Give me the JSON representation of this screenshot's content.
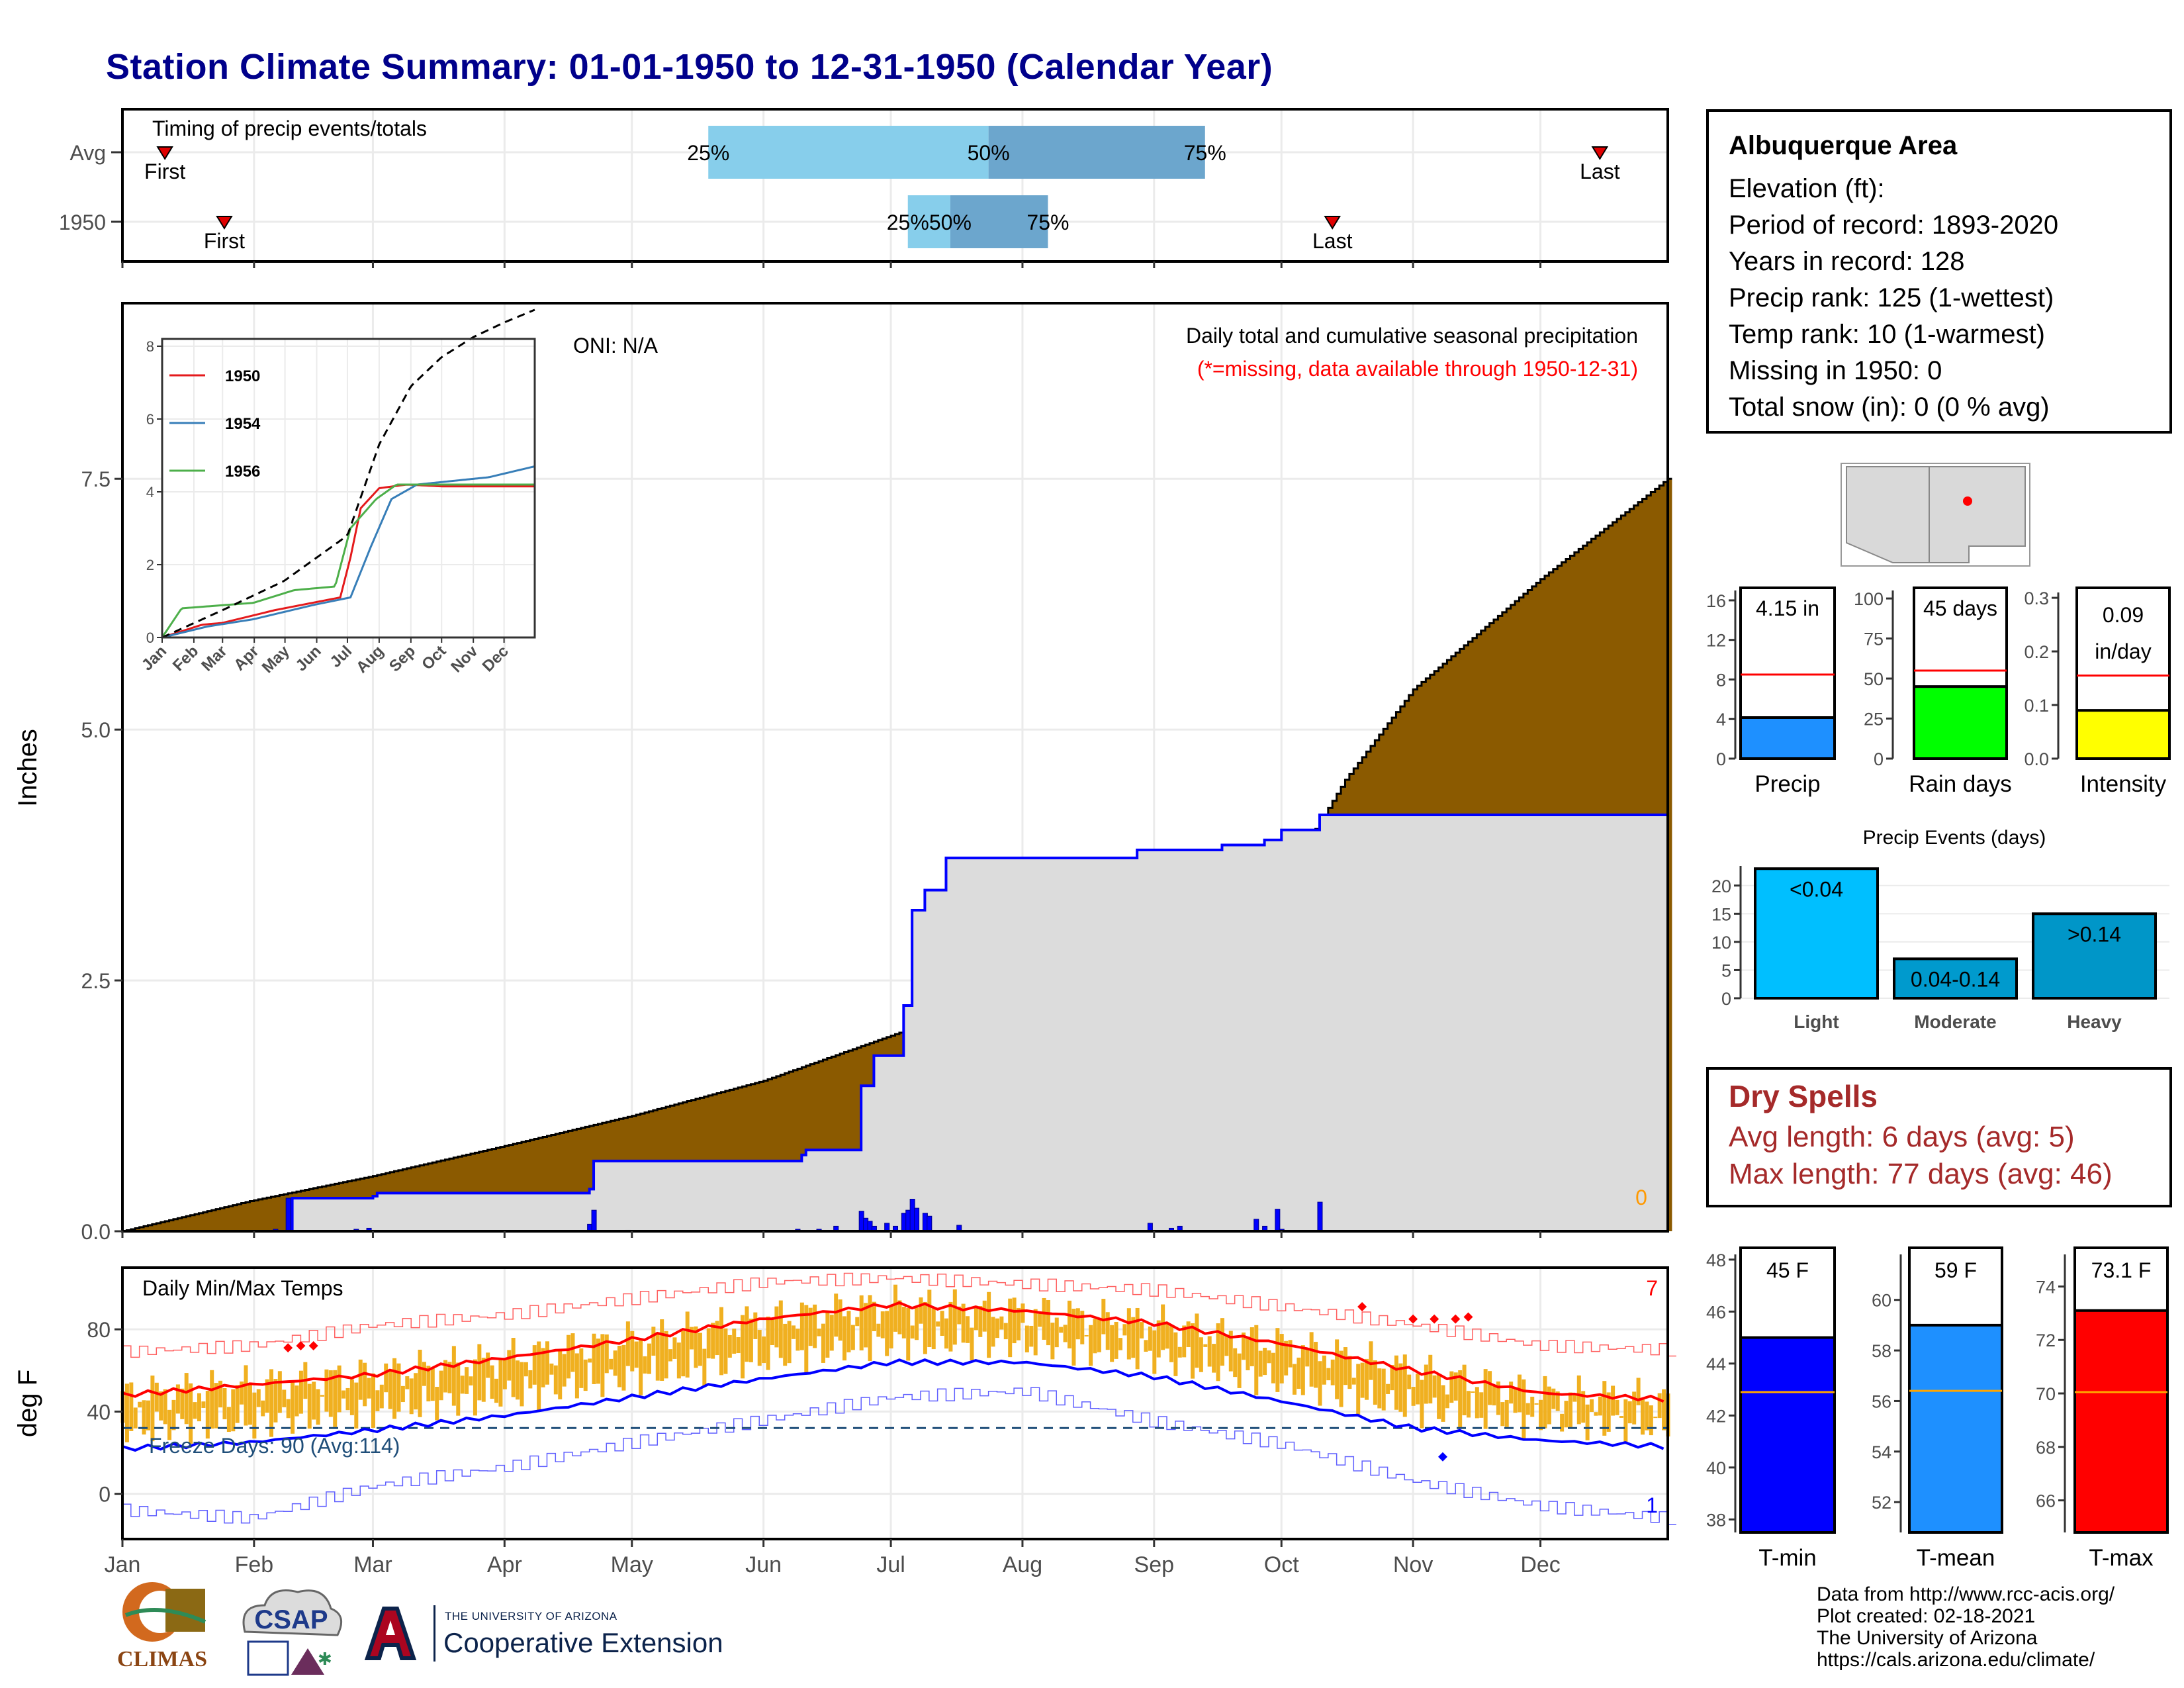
{
  "title": "Station Climate Summary: 01-01-1950 to 12-31-1950 (Calendar Year)",
  "months": [
    "Jan",
    "Feb",
    "Mar",
    "Apr",
    "May",
    "Jun",
    "Jul",
    "Aug",
    "Sep",
    "Oct",
    "Nov",
    "Dec"
  ],
  "station": {
    "name": "Albuquerque Area",
    "lines": [
      "Elevation (ft):",
      "Period of record: 1893-2020",
      "Years in record: 128",
      "Precip rank: 125 (1-wettest)",
      "Temp rank: 10 (1-warmest)",
      "Missing in 1950: 0",
      "Total snow (in): 0 (0 % avg)"
    ]
  },
  "dry_spells": {
    "title": "Dry Spells",
    "avg": "Avg length: 6 days (avg: 5)",
    "max": "Max length: 77 days (avg: 46)"
  },
  "footer": [
    "Data from http://www.rcc-acis.org/",
    "Plot created: 02-18-2021",
    "The University of Arizona",
    "https://cals.arizona.edu/climate/"
  ],
  "logos": {
    "climas": "CLIMAS",
    "csap": "CSAP",
    "ua_small": "THE UNIVERSITY OF ARIZONA",
    "ua_coop": "Cooperative Extension"
  },
  "colors": {
    "avg_cum_fill": "#8b5a00",
    "obs_cum_fill": "#dcdcdc",
    "obs_line": "#0000ff",
    "bar_light": "#87ceeb",
    "bar_dark": "#6ca6cd",
    "temp_band": "#f0b020",
    "tmax_avg": "#ff0000",
    "tmin_avg": "#0000ff"
  },
  "chart_data": [
    {
      "type": "bar",
      "id": "timing",
      "title": "Timing of precip events/totals",
      "categories": [
        "Avg",
        "1950"
      ],
      "x_unit": "day of year",
      "rows": [
        {
          "label": "Avg",
          "first": 11,
          "last": 349,
          "p25": 139,
          "p50": 205,
          "p75": 256,
          "labels": {
            "first": "First",
            "last": "Last",
            "p25": "25%",
            "p50": "50%",
            "p75": "75%"
          }
        },
        {
          "label": "1950",
          "first": 25,
          "last": 286,
          "p25": 186,
          "p50": 196,
          "p75": 219,
          "labels": {
            "first": "First",
            "last": "Last",
            "p25": "25%",
            "p50": "50%",
            "p75": "75%"
          }
        }
      ]
    },
    {
      "type": "area",
      "id": "cumulative-precip",
      "title": "Daily total and cumulative seasonal precipitation",
      "subtitle": "(*=missing, data available through 1950-12-31)",
      "annotation": "ONI: N/A",
      "ylabel": "Inches",
      "ylim": [
        0,
        9.25
      ],
      "yticks": [
        0.0,
        2.5,
        5.0,
        7.5
      ],
      "ytick_labels": [
        "0.0",
        "2.5",
        "5.0",
        "7.5"
      ],
      "missing_count_label": "0",
      "x_unit": "day of year",
      "avg_cumulative": [
        [
          1,
          0
        ],
        [
          31,
          0.3
        ],
        [
          60,
          0.55
        ],
        [
          91,
          0.85
        ],
        [
          121,
          1.15
        ],
        [
          152,
          1.5
        ],
        [
          182,
          1.95
        ],
        [
          213,
          2.4
        ],
        [
          244,
          2.75
        ],
        [
          274,
          3.45
        ],
        [
          289,
          4.5
        ],
        [
          305,
          5.4
        ],
        [
          335,
          6.5
        ],
        [
          365,
          7.5
        ]
      ],
      "obs_cumulative_steps": [
        [
          1,
          0
        ],
        [
          40,
          0
        ],
        [
          41,
          0.33
        ],
        [
          60,
          0.35
        ],
        [
          61,
          0.38
        ],
        [
          111,
          0.42
        ],
        [
          112,
          0.7
        ],
        [
          161,
          0.76
        ],
        [
          162,
          0.81
        ],
        [
          175,
          1.45
        ],
        [
          178,
          1.75
        ],
        [
          185,
          2.25
        ],
        [
          187,
          3.2
        ],
        [
          190,
          3.4
        ],
        [
          195,
          3.72
        ],
        [
          240,
          3.8
        ],
        [
          260,
          3.85
        ],
        [
          270,
          3.9
        ],
        [
          274,
          4.0
        ],
        [
          283,
          4.15
        ],
        [
          365,
          4.15
        ]
      ],
      "daily_bars": [
        [
          37,
          0.02
        ],
        [
          40,
          0.33
        ],
        [
          56,
          0.02
        ],
        [
          59,
          0.03
        ],
        [
          111,
          0.07
        ],
        [
          112,
          0.21
        ],
        [
          120,
          0.01
        ],
        [
          160,
          0.02
        ],
        [
          165,
          0.02
        ],
        [
          169,
          0.05
        ],
        [
          175,
          0.2
        ],
        [
          176,
          0.13
        ],
        [
          177,
          0.1
        ],
        [
          178,
          0.05
        ],
        [
          181,
          0.08
        ],
        [
          183,
          0.05
        ],
        [
          185,
          0.18
        ],
        [
          186,
          0.21
        ],
        [
          187,
          0.32
        ],
        [
          188,
          0.23
        ],
        [
          190,
          0.18
        ],
        [
          191,
          0.15
        ],
        [
          198,
          0.06
        ],
        [
          243,
          0.08
        ],
        [
          248,
          0.03
        ],
        [
          250,
          0.05
        ],
        [
          268,
          0.12
        ],
        [
          270,
          0.05
        ],
        [
          273,
          0.22
        ],
        [
          274,
          0.02
        ],
        [
          283,
          0.29
        ]
      ]
    },
    {
      "type": "line",
      "id": "inset-cumulative",
      "series": [
        {
          "name": "1950",
          "color": "#e41a1c",
          "points": [
            [
              1,
              0
            ],
            [
              40,
              0.35
            ],
            [
              60,
              0.4
            ],
            [
              111,
              0.75
            ],
            [
              175,
              1.1
            ],
            [
              185,
              2.2
            ],
            [
              195,
              3.55
            ],
            [
              213,
              4.1
            ],
            [
              240,
              4.2
            ],
            [
              274,
              4.15
            ],
            [
              365,
              4.15
            ]
          ]
        },
        {
          "name": "1954",
          "color": "#377eb8",
          "points": [
            [
              1,
              0
            ],
            [
              45,
              0.3
            ],
            [
              90,
              0.5
            ],
            [
              150,
              0.9
            ],
            [
              185,
              1.1
            ],
            [
              205,
              2.5
            ],
            [
              225,
              3.8
            ],
            [
              250,
              4.2
            ],
            [
              320,
              4.4
            ],
            [
              350,
              4.6
            ],
            [
              365,
              4.7
            ]
          ]
        },
        {
          "name": "1956",
          "color": "#4daf4a",
          "points": [
            [
              1,
              0
            ],
            [
              20,
              0.8
            ],
            [
              90,
              0.95
            ],
            [
              130,
              1.3
            ],
            [
              170,
              1.4
            ],
            [
              185,
              3.0
            ],
            [
              210,
              3.8
            ],
            [
              230,
              4.2
            ],
            [
              270,
              4.2
            ],
            [
              365,
              4.2
            ]
          ]
        }
      ],
      "average": {
        "style": "dashed",
        "color": "#000000",
        "points": [
          [
            1,
            0
          ],
          [
            60,
            0.75
          ],
          [
            120,
            1.55
          ],
          [
            182,
            2.8
          ],
          [
            213,
            5.3
          ],
          [
            244,
            6.9
          ],
          [
            274,
            7.7
          ],
          [
            305,
            8.25
          ],
          [
            335,
            8.65
          ],
          [
            365,
            9.0
          ]
        ]
      },
      "ylim": [
        0,
        8.2
      ],
      "yticks": [
        0,
        2,
        4,
        6,
        8
      ],
      "ytick_labels": [
        "0",
        "2",
        "4",
        "6",
        "8"
      ],
      "xtick_labels": [
        "Jan",
        "Feb",
        "Mar",
        "Apr",
        "May",
        "Jun",
        "Jul",
        "Aug",
        "Sep",
        "Oct",
        "Nov",
        "Dec"
      ]
    },
    {
      "type": "line",
      "id": "daily-temps",
      "title": "Daily Min/Max Temps",
      "ylabel": "deg F",
      "ylim": [
        -22,
        110
      ],
      "yticks": [
        0,
        40,
        80
      ],
      "ytick_labels": [
        "0",
        "40",
        "80"
      ],
      "freeze_label": "Freeze Days: 90 (Avg:114)",
      "freeze_line": 32,
      "record_high_count": "7",
      "record_low_count": "1",
      "avg_tmax": [
        [
          1,
          48
        ],
        [
          31,
          53
        ],
        [
          60,
          58
        ],
        [
          91,
          66
        ],
        [
          121,
          75
        ],
        [
          152,
          85
        ],
        [
          182,
          92
        ],
        [
          213,
          89
        ],
        [
          244,
          83
        ],
        [
          274,
          73
        ],
        [
          305,
          60
        ],
        [
          335,
          49
        ],
        [
          365,
          46
        ]
      ],
      "avg_tmin": [
        [
          1,
          22
        ],
        [
          31,
          25
        ],
        [
          60,
          31
        ],
        [
          91,
          38
        ],
        [
          121,
          47
        ],
        [
          152,
          56
        ],
        [
          182,
          64
        ],
        [
          213,
          64
        ],
        [
          244,
          57
        ],
        [
          274,
          45
        ],
        [
          305,
          32
        ],
        [
          335,
          26
        ],
        [
          365,
          23
        ]
      ],
      "rec_max": [
        [
          1,
          69
        ],
        [
          31,
          72
        ],
        [
          60,
          82
        ],
        [
          91,
          87
        ],
        [
          121,
          95
        ],
        [
          152,
          103
        ],
        [
          182,
          105
        ],
        [
          213,
          102
        ],
        [
          244,
          99
        ],
        [
          274,
          91
        ],
        [
          305,
          82
        ],
        [
          335,
          72
        ],
        [
          365,
          70
        ]
      ],
      "rec_min": [
        [
          1,
          -8
        ],
        [
          31,
          -12
        ],
        [
          60,
          4
        ],
        [
          91,
          13
        ],
        [
          121,
          25
        ],
        [
          152,
          36
        ],
        [
          182,
          47
        ],
        [
          213,
          50
        ],
        [
          244,
          35
        ],
        [
          274,
          24
        ],
        [
          305,
          6
        ],
        [
          335,
          -6
        ],
        [
          365,
          -12
        ]
      ]
    },
    {
      "type": "bar",
      "id": "precip-gauge",
      "categories": [
        "Precip"
      ],
      "values": [
        4.15
      ],
      "average": 8.5,
      "value_label": "4.15 in",
      "ylim": [
        0,
        17
      ],
      "yticks": [
        0,
        4,
        8,
        12,
        16
      ],
      "ytick_labels": [
        "0",
        "4",
        "8",
        "12",
        "16"
      ],
      "color": "#1e90ff"
    },
    {
      "type": "bar",
      "id": "raindays-gauge",
      "categories": [
        "Rain days"
      ],
      "values": [
        45
      ],
      "average": 55,
      "value_label": "45 days",
      "ylim": [
        0,
        105
      ],
      "yticks": [
        0,
        25,
        50,
        75,
        100
      ],
      "ytick_labels": [
        "0",
        "25",
        "50",
        "75",
        "100"
      ],
      "color": "#00ff00"
    },
    {
      "type": "bar",
      "id": "intensity-gauge",
      "categories": [
        "Intensity"
      ],
      "values": [
        0.09
      ],
      "average": 0.155,
      "value_label": "0.09",
      "value_label_2": "in/day",
      "ylim": [
        0,
        0.31
      ],
      "yticks": [
        0.0,
        0.1,
        0.2,
        0.3
      ],
      "ytick_labels": [
        "0.0",
        "0.1",
        "0.2",
        "0.3"
      ],
      "color": "#ffff00"
    },
    {
      "type": "bar",
      "id": "precip-events",
      "title": "Precip Events (days)",
      "categories": [
        "Light",
        "Moderate",
        "Heavy"
      ],
      "values": [
        23,
        7,
        15
      ],
      "bar_labels": [
        "<0.04",
        "0.04-0.14",
        ">0.14"
      ],
      "ylim": [
        0,
        23.5
      ],
      "yticks": [
        0,
        5,
        10,
        15,
        20
      ],
      "ytick_labels": [
        "0",
        "5",
        "10",
        "15",
        "20"
      ],
      "colors": [
        "#00bfff",
        "#009acd",
        "#0096c8"
      ]
    },
    {
      "type": "bar",
      "id": "tmin-gauge",
      "categories": [
        "T-min"
      ],
      "values": [
        45
      ],
      "average": 42.9,
      "value_label": "45 F",
      "ylim": [
        37.5,
        48.2
      ],
      "yticks": [
        38,
        40,
        42,
        44,
        46,
        48
      ],
      "ytick_labels": [
        "38",
        "40",
        "42",
        "44",
        "46",
        "48"
      ],
      "color": "#0000ff"
    },
    {
      "type": "bar",
      "id": "tmean-gauge",
      "categories": [
        "T-mean"
      ],
      "values": [
        59
      ],
      "average": 56.4,
      "value_label": "59 F",
      "ylim": [
        50.8,
        61.8
      ],
      "yticks": [
        52,
        54,
        56,
        58,
        60
      ],
      "ytick_labels": [
        "52",
        "54",
        "56",
        "58",
        "60"
      ],
      "color": "#1e90ff"
    },
    {
      "type": "bar",
      "id": "tmax-gauge",
      "categories": [
        "T-max"
      ],
      "values": [
        73.1
      ],
      "average": 70.05,
      "value_label": "73.1 F",
      "ylim": [
        64.8,
        75.2
      ],
      "yticks": [
        66,
        68,
        70,
        72,
        74
      ],
      "ytick_labels": [
        "66",
        "68",
        "70",
        "72",
        "74"
      ],
      "color": "#ff0000"
    }
  ]
}
